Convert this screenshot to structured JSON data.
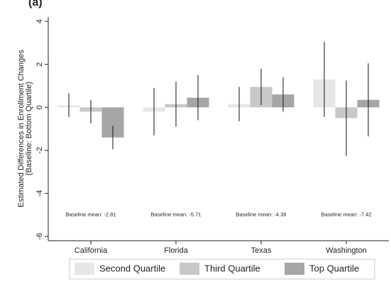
{
  "chart_data": {
    "type": "bar",
    "title": "(a)",
    "y_label": [
      "Estimated Differences in Enrollment Changes",
      "(Baseline: Bottom Quartile)"
    ],
    "categories": [
      "California",
      "Florida",
      "Texas",
      "Washington"
    ],
    "series": [
      {
        "name": "Second Quartile",
        "color": "#e6e6e6",
        "values": [
          0.1,
          -0.2,
          0.15,
          1.3
        ],
        "errors": [
          0.55,
          1.1,
          0.8,
          1.75
        ]
      },
      {
        "name": "Third Quartile",
        "color": "#c8c8c8",
        "values": [
          -0.2,
          0.15,
          0.95,
          -0.5
        ],
        "errors": [
          0.55,
          1.05,
          0.85,
          1.75
        ]
      },
      {
        "name": "Top Quartile",
        "color": "#a6a6a6",
        "values": [
          -1.4,
          0.45,
          0.6,
          0.35
        ],
        "errors": [
          0.55,
          1.05,
          0.8,
          1.7
        ]
      }
    ],
    "annotations": [
      "Baseline mean: -2.81",
      "Baseline mean: -5.71",
      "Baseline mean: -4.39",
      "Baseline mean: -7.42"
    ],
    "ylim": [
      -6.2,
      4.2
    ],
    "yticks": [
      -6,
      -4,
      -2,
      0,
      2,
      4
    ],
    "grid": false,
    "legend": "bottom"
  }
}
